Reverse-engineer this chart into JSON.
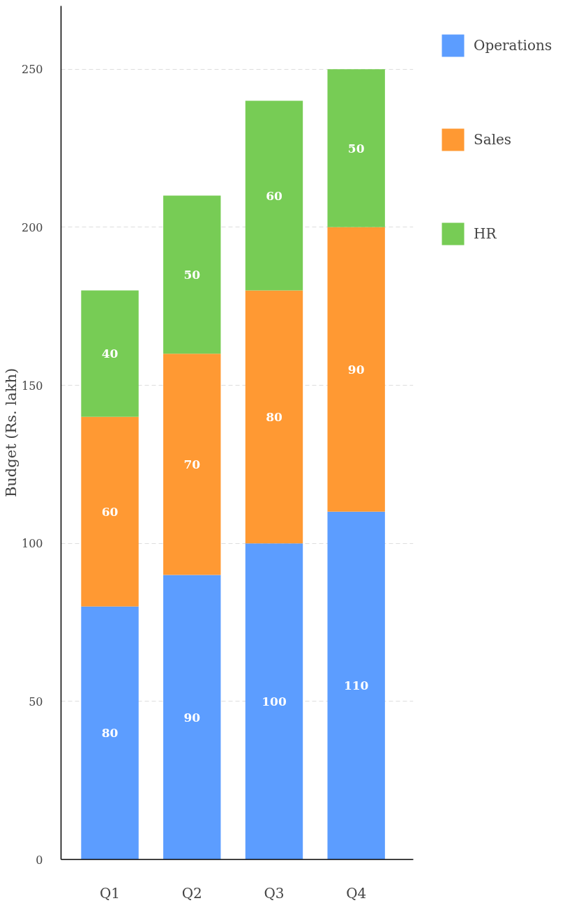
{
  "chart_data": {
    "type": "bar",
    "stacked": true,
    "ylabel": "Budget (Rs. lakh)",
    "categories": [
      "Q1",
      "Q2",
      "Q3",
      "Q4"
    ],
    "series": [
      {
        "name": "Operations",
        "color": "#5c9dff",
        "values": [
          80,
          90,
          100,
          110
        ]
      },
      {
        "name": "Sales",
        "color": "#ff9933",
        "values": [
          60,
          70,
          80,
          90
        ]
      },
      {
        "name": "HR",
        "color": "#77cc55",
        "values": [
          40,
          50,
          60,
          50
        ]
      }
    ],
    "ylim": [
      0,
      270
    ],
    "yticks": [
      0,
      50,
      100,
      150,
      200,
      250
    ],
    "grid": "y",
    "legend": "right",
    "data_labels": true
  }
}
